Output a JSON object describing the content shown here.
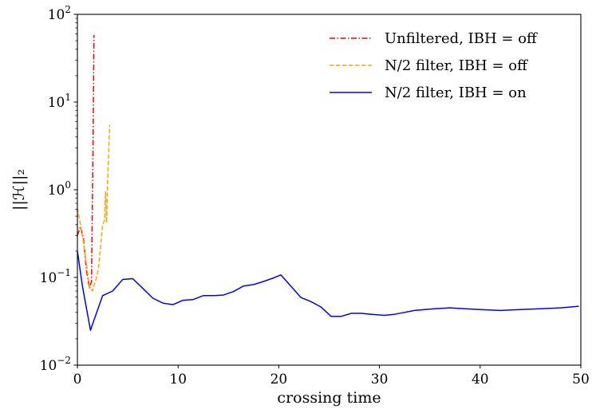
{
  "chart_data": {
    "type": "line",
    "title": "",
    "xlabel": "crossing time",
    "ylabel": "||ℋ||₂",
    "xlim": [
      0,
      50
    ],
    "ylim": [
      0.01,
      100
    ],
    "yscale": "log",
    "grid": false,
    "legend_position": "top-right",
    "xticks": [
      0,
      10,
      20,
      30,
      40,
      50
    ],
    "xtick_labels": [
      "0",
      "10",
      "20",
      "30",
      "40",
      "50"
    ],
    "yticks": [
      0.01,
      0.1,
      1,
      10,
      100
    ],
    "ytick_labels": [
      {
        "base": "10",
        "exp": "−2"
      },
      {
        "base": "10",
        "exp": "−1"
      },
      {
        "base": "10",
        "exp": "0"
      },
      {
        "base": "10",
        "exp": "1"
      },
      {
        "base": "10",
        "exp": "2"
      }
    ],
    "series": [
      {
        "name": "Unfiltered, IBH = off",
        "color": "#ff0000",
        "dash": "dashdot",
        "x": [
          0,
          0.3,
          0.6,
          0.9,
          1.2,
          1.4,
          1.55,
          1.65
        ],
        "y": [
          0.3,
          0.38,
          0.28,
          0.12,
          0.075,
          0.09,
          3.0,
          58.0
        ]
      },
      {
        "name": "N/2 filter, IBH = off",
        "color": "#ffa500",
        "dash": "dashed",
        "x": [
          0,
          0.3,
          0.6,
          0.9,
          1.2,
          1.5,
          1.7,
          1.9,
          2.1,
          2.3,
          2.5,
          2.7,
          2.8,
          2.9,
          3.0,
          3.2
        ],
        "y": [
          0.62,
          0.4,
          0.25,
          0.14,
          0.08,
          0.07,
          0.085,
          0.1,
          0.13,
          0.22,
          0.4,
          0.45,
          0.95,
          0.42,
          1.2,
          5.5
        ]
      },
      {
        "name": "N/2 filter, IBH = on",
        "color": "#0000ff",
        "dash": "solid",
        "x": [
          0,
          0.5,
          1.3,
          2.5,
          3.5,
          4.5,
          5.5,
          6.5,
          7.5,
          8.5,
          9.5,
          10.5,
          11.5,
          12.5,
          13.5,
          14.5,
          15.5,
          16.5,
          17.5,
          18.5,
          19.5,
          20.2,
          21.2,
          22.2,
          23.2,
          24.2,
          25.2,
          26.2,
          27.2,
          28.2,
          29.2,
          30.5,
          31.5,
          32.5,
          33.5,
          34.5,
          35.5,
          37.0,
          38.5,
          40.0,
          42.0,
          44.0,
          46.0,
          48.0,
          49.8
        ],
        "y": [
          0.2,
          0.08,
          0.025,
          0.062,
          0.07,
          0.095,
          0.097,
          0.075,
          0.058,
          0.051,
          0.049,
          0.055,
          0.056,
          0.062,
          0.062,
          0.063,
          0.069,
          0.08,
          0.083,
          0.09,
          0.099,
          0.107,
          0.08,
          0.059,
          0.053,
          0.046,
          0.036,
          0.036,
          0.039,
          0.039,
          0.038,
          0.037,
          0.038,
          0.04,
          0.042,
          0.043,
          0.044,
          0.045,
          0.044,
          0.043,
          0.042,
          0.043,
          0.044,
          0.045,
          0.047
        ]
      }
    ]
  }
}
